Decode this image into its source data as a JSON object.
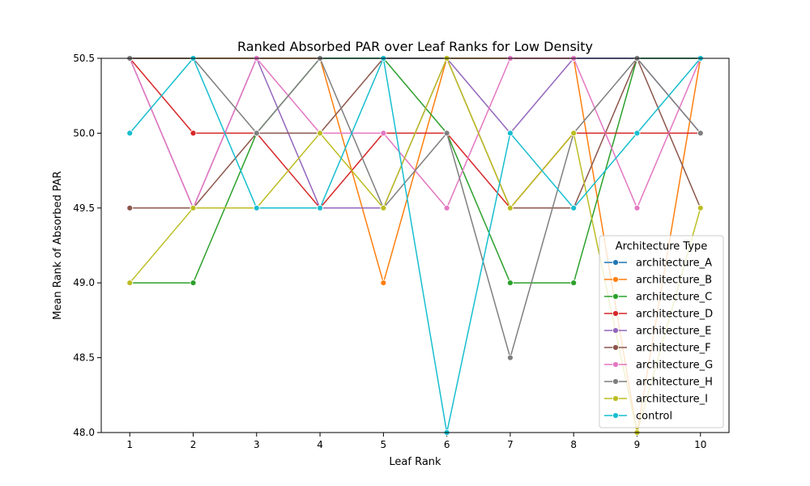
{
  "chart_data": {
    "type": "line",
    "title": "Ranked Absorbed PAR over Leaf Ranks for Low Density",
    "xlabel": "Leaf Rank",
    "ylabel": "Mean Rank of Absorbed PAR",
    "x": [
      1,
      2,
      3,
      4,
      5,
      6,
      7,
      8,
      9,
      10
    ],
    "xticks": [
      "1",
      "2",
      "3",
      "4",
      "5",
      "6",
      "7",
      "8",
      "9",
      "10"
    ],
    "ylim": [
      48.0,
      50.5
    ],
    "yticks": [
      "48.0",
      "48.5",
      "49.0",
      "49.5",
      "50.0",
      "50.5"
    ],
    "legend_title": "Architecture Type",
    "legend_position": "lower-right",
    "grid": false,
    "series": [
      {
        "name": "architecture_A",
        "color": "#1f77b4",
        "values": [
          50.5,
          50.5,
          50.5,
          50.5,
          50.5,
          50.5,
          50.5,
          50.5,
          50.5,
          50.5
        ]
      },
      {
        "name": "architecture_B",
        "color": "#ff7f0e",
        "values": [
          50.5,
          50.5,
          50.5,
          50.5,
          49.0,
          50.5,
          50.5,
          50.5,
          48.0,
          50.5
        ]
      },
      {
        "name": "architecture_C",
        "color": "#2ca02c",
        "values": [
          49.0,
          49.0,
          50.0,
          50.5,
          50.5,
          50.0,
          49.0,
          49.0,
          50.5,
          50.5
        ]
      },
      {
        "name": "architecture_D",
        "color": "#d62728",
        "values": [
          50.5,
          50.0,
          50.0,
          49.5,
          50.0,
          50.0,
          49.5,
          50.0,
          50.0,
          50.0
        ]
      },
      {
        "name": "architecture_E",
        "color": "#9467bd",
        "values": [
          50.5,
          49.5,
          50.5,
          49.5,
          49.5,
          50.5,
          50.0,
          50.5,
          50.5,
          50.0
        ]
      },
      {
        "name": "architecture_F",
        "color": "#8c564b",
        "values": [
          49.5,
          49.5,
          50.0,
          50.0,
          50.5,
          50.5,
          49.5,
          49.5,
          50.5,
          49.5
        ]
      },
      {
        "name": "architecture_G",
        "color": "#e377c2",
        "values": [
          50.5,
          49.5,
          50.5,
          50.0,
          50.0,
          49.5,
          50.5,
          50.5,
          49.5,
          50.5
        ]
      },
      {
        "name": "architecture_H",
        "color": "#7f7f7f",
        "values": [
          50.5,
          50.5,
          50.0,
          50.5,
          49.5,
          50.0,
          48.5,
          50.0,
          50.5,
          50.0
        ]
      },
      {
        "name": "architecture_I",
        "color": "#bcbd22",
        "values": [
          49.0,
          49.5,
          49.5,
          50.0,
          49.5,
          50.5,
          49.5,
          50.0,
          48.0,
          49.5
        ]
      },
      {
        "name": "control",
        "color": "#17becf",
        "values": [
          50.0,
          50.5,
          49.5,
          49.5,
          50.5,
          48.0,
          50.0,
          49.5,
          50.0,
          50.5
        ]
      }
    ]
  }
}
